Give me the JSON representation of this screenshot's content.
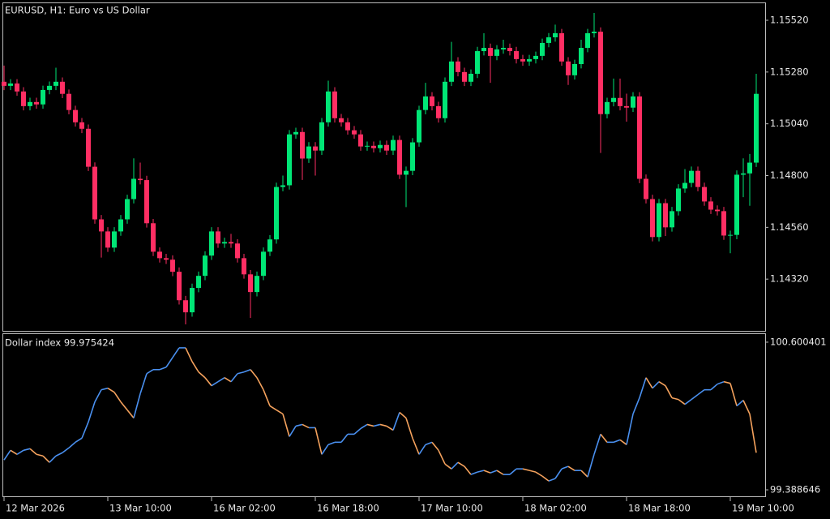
{
  "chart_data": [
    {
      "type": "candlestick",
      "title": "EURUSD, H1:  Euro vs US Dollar",
      "categories": [
        "12 Mar 2026",
        null,
        null,
        null,
        null,
        null,
        null,
        null,
        null,
        null,
        null,
        null,
        null,
        null,
        null,
        null,
        "13 Mar 10:00",
        null,
        null,
        null,
        null,
        null,
        null,
        null,
        null,
        null,
        null,
        null,
        null,
        null,
        null,
        null,
        "16 Mar 02:00",
        null,
        null,
        null,
        null,
        null,
        null,
        null,
        null,
        null,
        null,
        null,
        null,
        null,
        null,
        null,
        "16 Mar 18:00",
        null,
        null,
        null,
        null,
        null,
        null,
        null,
        null,
        null,
        null,
        null,
        null,
        null,
        null,
        null,
        "17 Mar 10:00",
        null,
        null,
        null,
        null,
        null,
        null,
        null,
        null,
        null,
        null,
        null,
        null,
        null,
        null,
        null,
        "18 Mar 02:00",
        null,
        null,
        null,
        null,
        null,
        null,
        null,
        null,
        null,
        null,
        null,
        null,
        null,
        null,
        null,
        "18 Mar 18:00",
        null,
        null,
        null,
        null,
        null,
        null,
        null,
        null,
        null,
        null,
        null,
        null,
        null,
        null,
        null,
        "19 Mar 10:00",
        null,
        null,
        null,
        null
      ],
      "open": [
        1.15235,
        1.15216,
        1.15227,
        1.1519,
        1.15122,
        1.15141,
        1.1513,
        1.15197,
        1.15216,
        1.15235,
        1.15179,
        1.15104,
        1.15047,
        1.15017,
        1.14841,
        1.14597,
        1.14541,
        1.14466,
        1.14541,
        1.14597,
        1.14691,
        1.14785,
        1.14779,
        1.14579,
        1.14447,
        1.14417,
        1.1441,
        1.14354,
        1.14222,
        1.14166,
        1.14279,
        1.14335,
        1.14429,
        1.14541,
        1.14485,
        1.14492,
        1.14485,
        1.14417,
        1.14342,
        1.1426,
        1.14335,
        1.14447,
        1.14504,
        1.14747,
        1.14755,
        1.14991,
        1.15002,
        1.14879,
        1.14935,
        1.14916,
        1.15047,
        1.1519,
        1.15066,
        1.15047,
        1.1501,
        1.14991,
        1.14935,
        1.14938,
        1.14927,
        1.14942,
        1.14916,
        1.14965,
        1.14804,
        1.14822,
        1.14954,
        1.15104,
        1.15167,
        1.15122,
        1.15066,
        1.15235,
        1.15329,
        1.1528,
        1.15235,
        1.15272,
        1.15377,
        1.15392,
        1.15355,
        1.15385,
        1.15392,
        1.15377,
        1.1534,
        1.15329,
        1.1534,
        1.15355,
        1.15415,
        1.15441,
        1.1546,
        1.15329,
        1.15265,
        1.15317,
        1.15392,
        1.1546,
        1.15467,
        1.15085,
        1.15141,
        1.1516,
        1.15122,
        1.15115,
        1.15167,
        1.14785,
        1.14691,
        1.14515,
        1.14672,
        1.1456,
        1.14635,
        1.1474,
        1.14766,
        1.14822,
        1.14747,
        1.1468,
        1.14642,
        1.14635,
        1.14522,
        1.14525,
        1.14804,
        1.1481,
        1.1486
      ],
      "high": [
        1.1531,
        1.15247,
        1.15247,
        1.1521,
        1.15161,
        1.15161,
        1.15217,
        1.15236,
        1.153,
        1.15255,
        1.15199,
        1.15124,
        1.15067,
        1.15037,
        1.14861,
        1.14617,
        1.14561,
        1.14561,
        1.14617,
        1.14711,
        1.1488,
        1.1486,
        1.14799,
        1.14599,
        1.14467,
        1.14437,
        1.1443,
        1.14374,
        1.14242,
        1.14299,
        1.14355,
        1.14449,
        1.14561,
        1.14561,
        1.14512,
        1.1453,
        1.14505,
        1.14437,
        1.14362,
        1.14355,
        1.14467,
        1.14524,
        1.14767,
        1.148,
        1.15011,
        1.15022,
        1.15022,
        1.14955,
        1.14955,
        1.15067,
        1.1524,
        1.1521,
        1.15086,
        1.15067,
        1.1503,
        1.15011,
        1.14958,
        1.14958,
        1.14962,
        1.14962,
        1.14985,
        1.14985,
        1.14842,
        1.14974,
        1.15124,
        1.1523,
        1.15187,
        1.15142,
        1.15255,
        1.1542,
        1.15349,
        1.153,
        1.15292,
        1.15397,
        1.1546,
        1.15412,
        1.15405,
        1.1543,
        1.15412,
        1.15397,
        1.1536,
        1.1536,
        1.15375,
        1.15435,
        1.15461,
        1.155,
        1.1548,
        1.15349,
        1.15337,
        1.1543,
        1.1548,
        1.15554,
        1.15487,
        1.15161,
        1.1525,
        1.1525,
        1.1518,
        1.15187,
        1.15187,
        1.14805,
        1.14711,
        1.14692,
        1.14692,
        1.14655,
        1.1476,
        1.1483,
        1.14842,
        1.14842,
        1.14767,
        1.147,
        1.14662,
        1.14655,
        1.14545,
        1.14824,
        1.1488,
        1.149,
        1.15272
      ],
      "low": [
        1.15196,
        1.15196,
        1.1517,
        1.15102,
        1.15102,
        1.1511,
        1.1511,
        1.15177,
        1.15196,
        1.15159,
        1.15084,
        1.15027,
        1.14997,
        1.14821,
        1.14577,
        1.1442,
        1.14446,
        1.14446,
        1.14521,
        1.14577,
        1.14671,
        1.14759,
        1.14559,
        1.14427,
        1.14397,
        1.1439,
        1.14334,
        1.14202,
        1.1411,
        1.14146,
        1.14259,
        1.14315,
        1.14409,
        1.14465,
        1.14465,
        1.14465,
        1.14397,
        1.14322,
        1.1414,
        1.1424,
        1.14315,
        1.14427,
        1.14484,
        1.14727,
        1.14735,
        1.14971,
        1.1478,
        1.14859,
        1.148,
        1.14896,
        1.15027,
        1.15046,
        1.15027,
        1.1499,
        1.14971,
        1.14915,
        1.14915,
        1.14907,
        1.14907,
        1.14896,
        1.14896,
        1.14784,
        1.14654,
        1.14802,
        1.14934,
        1.15084,
        1.15102,
        1.15046,
        1.15046,
        1.15215,
        1.1526,
        1.15215,
        1.15215,
        1.15252,
        1.15357,
        1.1523,
        1.15335,
        1.15365,
        1.15357,
        1.1532,
        1.15309,
        1.15309,
        1.1532,
        1.15335,
        1.15395,
        1.15421,
        1.15309,
        1.1522,
        1.15245,
        1.15297,
        1.15372,
        1.1544,
        1.14905,
        1.15065,
        1.15121,
        1.15102,
        1.1505,
        1.15095,
        1.14765,
        1.14671,
        1.14495,
        1.14495,
        1.1452,
        1.1454,
        1.14615,
        1.1472,
        1.14746,
        1.14727,
        1.1466,
        1.14622,
        1.14615,
        1.14502,
        1.1444,
        1.14505,
        1.147,
        1.1466,
        1.1484
      ],
      "close": [
        1.15216,
        1.15227,
        1.1519,
        1.15122,
        1.15141,
        1.1513,
        1.15197,
        1.15216,
        1.15235,
        1.15179,
        1.15104,
        1.15047,
        1.15017,
        1.14841,
        1.14597,
        1.14541,
        1.14466,
        1.14541,
        1.14597,
        1.14691,
        1.14785,
        1.14779,
        1.14579,
        1.14447,
        1.14417,
        1.1441,
        1.14354,
        1.14222,
        1.14166,
        1.14279,
        1.14335,
        1.14429,
        1.14541,
        1.14485,
        1.14492,
        1.14485,
        1.14417,
        1.14342,
        1.1426,
        1.14335,
        1.14447,
        1.14504,
        1.14747,
        1.14755,
        1.14991,
        1.15002,
        1.14879,
        1.14935,
        1.14916,
        1.15047,
        1.1519,
        1.15066,
        1.15047,
        1.1501,
        1.14991,
        1.14935,
        1.14938,
        1.14927,
        1.14942,
        1.14916,
        1.14965,
        1.14804,
        1.14822,
        1.14954,
        1.15104,
        1.15167,
        1.15122,
        1.15066,
        1.15235,
        1.15329,
        1.1528,
        1.15235,
        1.15272,
        1.15377,
        1.15392,
        1.15355,
        1.15385,
        1.15392,
        1.15377,
        1.1534,
        1.15329,
        1.1534,
        1.15355,
        1.15415,
        1.15441,
        1.1546,
        1.15329,
        1.15265,
        1.15317,
        1.15392,
        1.1546,
        1.15467,
        1.15085,
        1.15141,
        1.1516,
        1.15122,
        1.15115,
        1.15167,
        1.14785,
        1.14691,
        1.14515,
        1.14672,
        1.1456,
        1.14635,
        1.1474,
        1.14766,
        1.14822,
        1.14747,
        1.1468,
        1.14642,
        1.14635,
        1.14522,
        1.14525,
        1.14804,
        1.1481,
        1.1486,
        1.15179
      ],
      "up_color": "#00e676",
      "down_color": "#ff2e63",
      "ylim": [
        1.1408,
        1.15599
      ],
      "yticks": [
        {
          "value": 1.1432,
          "label": "1.14320"
        },
        {
          "value": 1.1456,
          "label": "1.14560"
        },
        {
          "value": 1.148,
          "label": "1.14800"
        },
        {
          "value": 1.1504,
          "label": "1.15040"
        },
        {
          "value": 1.1528,
          "label": "1.15280"
        },
        {
          "value": 1.1552,
          "label": "1.15520"
        }
      ]
    },
    {
      "type": "line",
      "title": "Dollar index 99.975424",
      "values": [
        99.6336,
        99.7131,
        99.68,
        99.7131,
        99.7263,
        99.68,
        99.6668,
        99.6138,
        99.6668,
        99.6932,
        99.733,
        99.7793,
        99.8124,
        99.9449,
        100.1104,
        100.2097,
        100.223,
        100.1899,
        100.1104,
        100.0442,
        99.978,
        100.1766,
        100.3422,
        100.3753,
        100.3753,
        100.3951,
        100.4746,
        100.554,
        100.554,
        100.4415,
        100.3554,
        100.309,
        100.2428,
        100.2759,
        100.309,
        100.2759,
        100.3422,
        100.3554,
        100.3753,
        100.309,
        100.2097,
        100.0773,
        100.0442,
        100.0111,
        99.8257,
        99.9118,
        99.925,
        99.8985,
        99.8985,
        99.68,
        99.7595,
        99.7793,
        99.7793,
        99.8455,
        99.8455,
        99.8919,
        99.925,
        99.9118,
        99.925,
        99.9118,
        99.8786,
        100.0243,
        99.978,
        99.8124,
        99.68,
        99.7595,
        99.7793,
        99.7131,
        99.6005,
        99.5608,
        99.6138,
        99.5807,
        99.5145,
        99.5343,
        99.5476,
        99.5277,
        99.5476,
        99.5145,
        99.5145,
        99.5608,
        99.5608,
        99.5476,
        99.5343,
        99.5012,
        99.4615,
        99.4813,
        99.5608,
        99.5807,
        99.5476,
        99.5476,
        99.4946,
        99.68,
        99.8455,
        99.7793,
        99.7793,
        99.7992,
        99.7595,
        100.0111,
        100.1435,
        100.309,
        100.223,
        100.2759,
        100.2428,
        100.1435,
        100.1303,
        100.0905,
        100.1303,
        100.17,
        100.2097,
        100.2097,
        100.2561,
        100.2759,
        100.2627,
        100.0773,
        100.1236,
        100.0111,
        99.6932
      ],
      "up_color": "#4a90f0",
      "down_color": "#f5a25d",
      "ylim": [
        99.3357,
        100.6666
      ],
      "yticks": [
        99.388646,
        100.600401
      ]
    }
  ]
}
